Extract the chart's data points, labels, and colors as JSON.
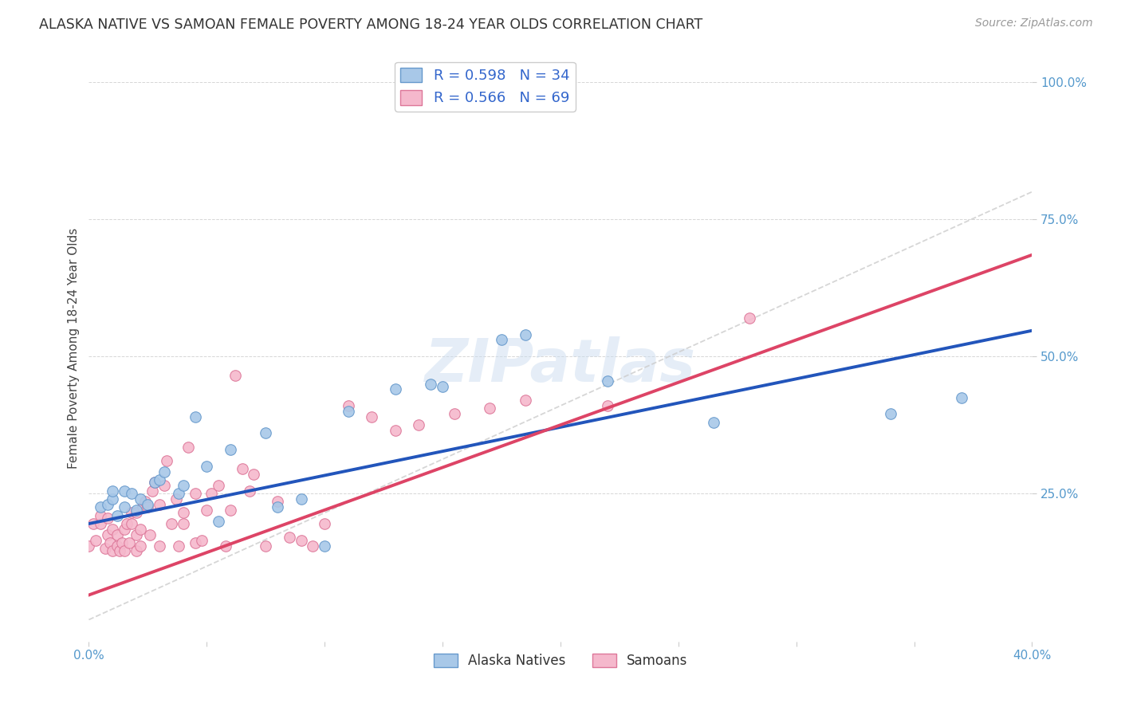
{
  "title": "ALASKA NATIVE VS SAMOAN FEMALE POVERTY AMONG 18-24 YEAR OLDS CORRELATION CHART",
  "source": "Source: ZipAtlas.com",
  "ylabel": "Female Poverty Among 18-24 Year Olds",
  "xlim": [
    0.0,
    0.4
  ],
  "ylim": [
    -0.02,
    1.05
  ],
  "xticks": [
    0.0,
    0.05,
    0.1,
    0.15,
    0.2,
    0.25,
    0.3,
    0.35,
    0.4
  ],
  "xtick_labels": [
    "0.0%",
    "",
    "",
    "",
    "",
    "",
    "",
    "",
    "40.0%"
  ],
  "yticks": [
    0.25,
    0.5,
    0.75,
    1.0
  ],
  "ytick_labels": [
    "25.0%",
    "50.0%",
    "75.0%",
    "100.0%"
  ],
  "background_color": "#ffffff",
  "grid_color": "#bbbbbb",
  "alaska_color": "#a8c8e8",
  "alaska_edge": "#6699cc",
  "samoan_color": "#f5b8cc",
  "samoan_edge": "#dd7799",
  "alaska_R": 0.598,
  "alaska_N": 34,
  "samoan_R": 0.566,
  "samoan_N": 69,
  "alaska_line_color": "#2255bb",
  "samoan_line_color": "#dd4466",
  "alaska_line_intercept": 0.195,
  "alaska_line_slope": 0.88,
  "samoan_line_intercept": 0.065,
  "samoan_line_slope": 1.55,
  "diag_line_color": "#bbbbbb",
  "alaska_x": [
    0.005,
    0.008,
    0.01,
    0.01,
    0.012,
    0.015,
    0.015,
    0.018,
    0.02,
    0.022,
    0.025,
    0.028,
    0.03,
    0.032,
    0.038,
    0.04,
    0.045,
    0.05,
    0.055,
    0.06,
    0.075,
    0.08,
    0.09,
    0.1,
    0.11,
    0.13,
    0.145,
    0.15,
    0.175,
    0.185,
    0.22,
    0.265,
    0.34,
    0.37
  ],
  "alaska_y": [
    0.225,
    0.23,
    0.24,
    0.255,
    0.21,
    0.225,
    0.255,
    0.25,
    0.22,
    0.24,
    0.23,
    0.27,
    0.275,
    0.29,
    0.25,
    0.265,
    0.39,
    0.3,
    0.2,
    0.33,
    0.36,
    0.225,
    0.24,
    0.155,
    0.4,
    0.44,
    0.45,
    0.445,
    0.53,
    0.54,
    0.455,
    0.38,
    0.395,
    0.425
  ],
  "samoan_x": [
    0.0,
    0.002,
    0.003,
    0.005,
    0.005,
    0.007,
    0.008,
    0.008,
    0.009,
    0.01,
    0.01,
    0.012,
    0.012,
    0.013,
    0.014,
    0.015,
    0.015,
    0.016,
    0.017,
    0.018,
    0.018,
    0.02,
    0.02,
    0.02,
    0.022,
    0.022,
    0.023,
    0.024,
    0.025,
    0.026,
    0.027,
    0.028,
    0.03,
    0.03,
    0.032,
    0.033,
    0.035,
    0.037,
    0.038,
    0.04,
    0.04,
    0.042,
    0.045,
    0.045,
    0.048,
    0.05,
    0.052,
    0.055,
    0.058,
    0.06,
    0.062,
    0.065,
    0.068,
    0.07,
    0.075,
    0.08,
    0.085,
    0.09,
    0.095,
    0.1,
    0.11,
    0.12,
    0.13,
    0.14,
    0.155,
    0.17,
    0.185,
    0.22,
    0.28
  ],
  "samoan_y": [
    0.155,
    0.195,
    0.165,
    0.195,
    0.21,
    0.15,
    0.175,
    0.205,
    0.16,
    0.145,
    0.185,
    0.155,
    0.175,
    0.145,
    0.16,
    0.145,
    0.185,
    0.195,
    0.16,
    0.195,
    0.215,
    0.145,
    0.175,
    0.215,
    0.155,
    0.185,
    0.225,
    0.235,
    0.225,
    0.175,
    0.255,
    0.27,
    0.155,
    0.23,
    0.265,
    0.31,
    0.195,
    0.24,
    0.155,
    0.215,
    0.195,
    0.335,
    0.16,
    0.25,
    0.165,
    0.22,
    0.25,
    0.265,
    0.155,
    0.22,
    0.465,
    0.295,
    0.255,
    0.285,
    0.155,
    0.235,
    0.17,
    0.165,
    0.155,
    0.195,
    0.41,
    0.39,
    0.365,
    0.375,
    0.395,
    0.405,
    0.42,
    0.41,
    0.57
  ],
  "marker_size": 95,
  "watermark_text": "ZIPatlas"
}
